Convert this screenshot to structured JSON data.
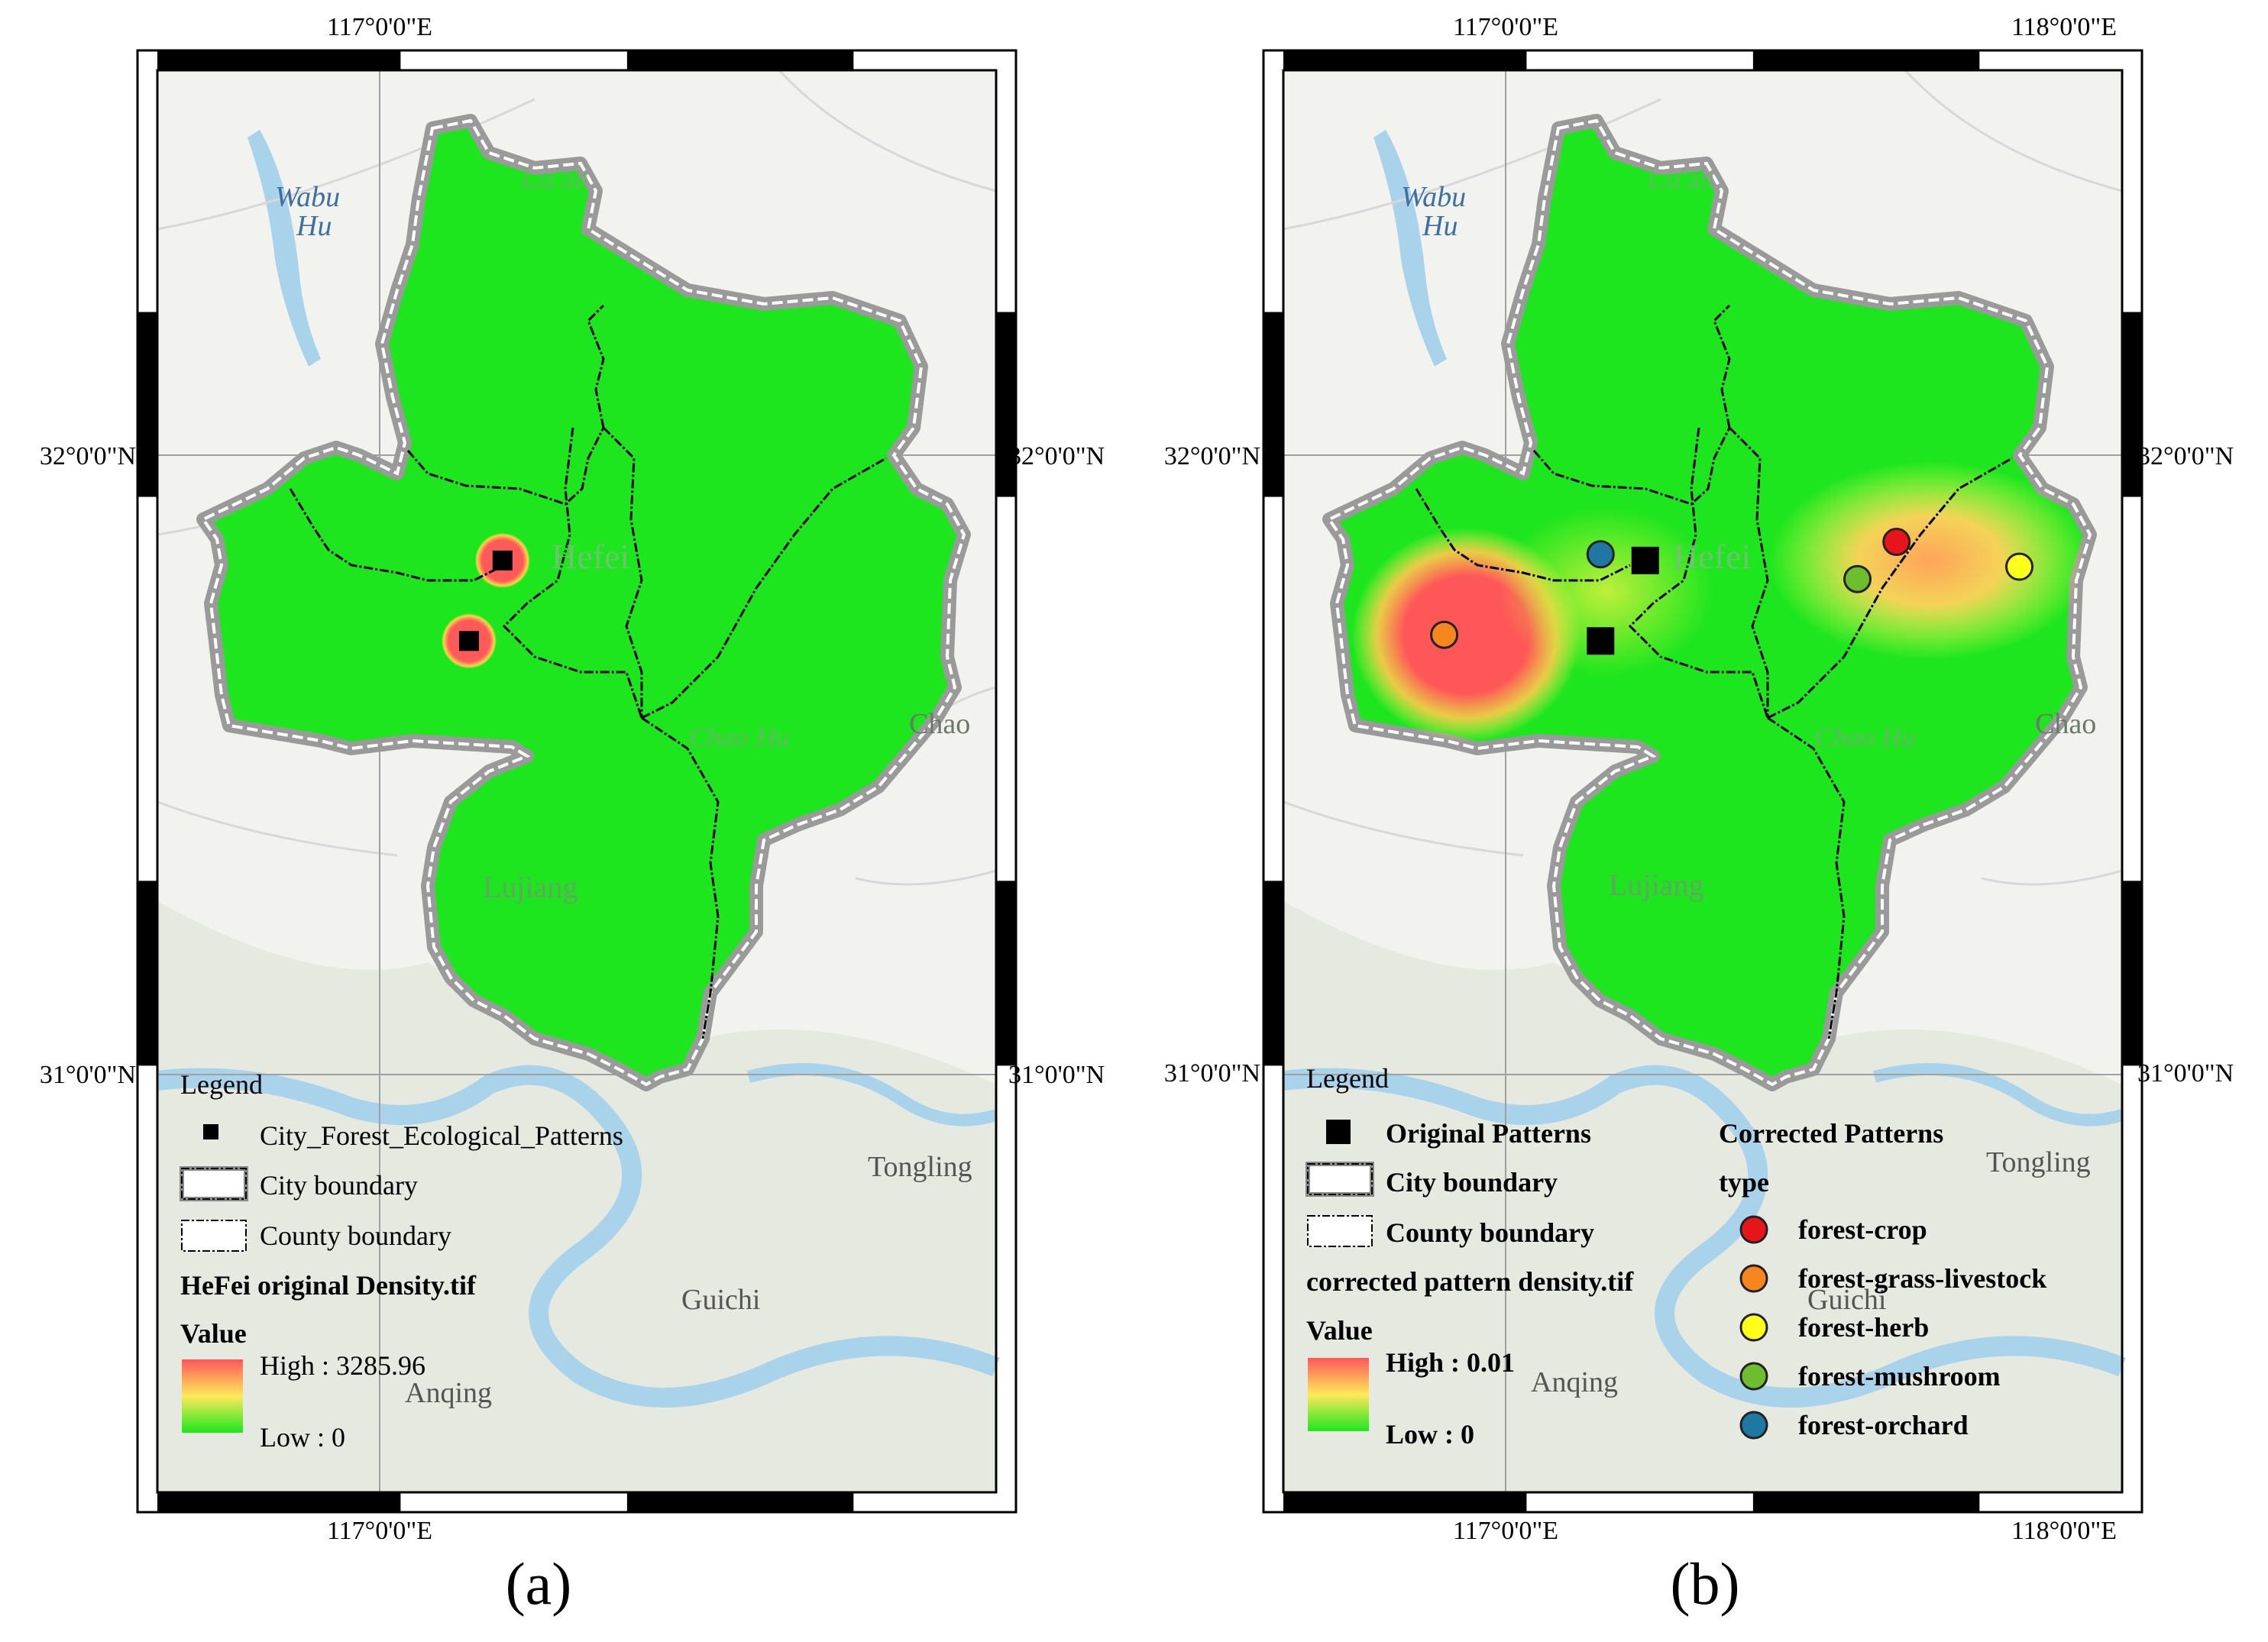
{
  "panels": [
    {
      "id": "a",
      "caption": "(a)",
      "top_lon_labels": [
        "117°0'0\"E"
      ],
      "bottom_lon_labels": [
        "117°0'0\"E"
      ],
      "left_lat_labels": [
        "32°0'0\"N",
        "31°0'0\"N"
      ],
      "right_lat_labels": [
        "32°0'0\"N",
        "31°0'0\"N"
      ],
      "basemap_labels": [
        "Wabu",
        "Hu",
        "Lu'an",
        "Hefei",
        "Chao Hu",
        "Chao",
        "Lujiang",
        "Tongling",
        "Guichi",
        "Anqing"
      ],
      "legend": {
        "title": "Legend",
        "point_label": "City_Forest_Ecological_Patterns",
        "city_boundary": "City boundary",
        "county_boundary": "County boundary",
        "raster_title": "HeFei original Density.tif",
        "value_title": "Value",
        "high": "High : 3285.96",
        "low": "Low : 0"
      },
      "points": [
        {
          "kind": "original",
          "lon": 117.22,
          "lat": 31.83
        },
        {
          "kind": "original",
          "lon": 117.16,
          "lat": 31.7
        }
      ],
      "hotspots": [
        {
          "lon": 117.22,
          "lat": 31.83,
          "intensity": 1.0
        },
        {
          "lon": 117.16,
          "lat": 31.7,
          "intensity": 1.0
        }
      ]
    },
    {
      "id": "b",
      "caption": "(b)",
      "top_lon_labels": [
        "117°0'0\"E",
        "118°0'0\"E"
      ],
      "bottom_lon_labels": [
        "117°0'0\"E",
        "118°0'0\"E"
      ],
      "left_lat_labels": [
        "32°0'0\"N",
        "31°0'0\"N"
      ],
      "right_lat_labels": [
        "32°0'0\"N",
        "31°0'0\"N"
      ],
      "basemap_labels": [
        "Wabu",
        "Hu",
        "Lu'an",
        "Hefei",
        "Chao Hu",
        "Chao",
        "Lujiang",
        "Tongling",
        "Guichi",
        "Anqing"
      ],
      "legend": {
        "title": "Legend",
        "point_label": "Original Patterns",
        "city_boundary": "City boundary",
        "county_boundary": "County boundary",
        "raster_title": "corrected pattern density.tif",
        "value_title": "Value",
        "high": "High : 0.01",
        "low": "Low : 0",
        "corrected_title": "Corrected Patterns",
        "type_title": "type",
        "types": [
          {
            "name": "forest-crop",
            "color": "#e8141c"
          },
          {
            "name": "forest-grass-livestock",
            "color": "#f7861f"
          },
          {
            "name": "forest-herb",
            "color": "#ffff1c"
          },
          {
            "name": "forest-mushroom",
            "color": "#6dbe2e"
          },
          {
            "name": "forest-orchard",
            "color": "#1f77a4"
          }
        ]
      },
      "original_points": [
        {
          "lon": 117.25,
          "lat": 31.83
        },
        {
          "lon": 117.17,
          "lat": 31.7
        }
      ],
      "corrected_points": [
        {
          "type": "forest-crop",
          "lon": 117.7,
          "lat": 31.86
        },
        {
          "type": "forest-grass-livestock",
          "lon": 116.89,
          "lat": 31.71
        },
        {
          "type": "forest-herb",
          "lon": 117.92,
          "lat": 31.82
        },
        {
          "type": "forest-mushroom",
          "lon": 117.63,
          "lat": 31.8
        },
        {
          "type": "forest-orchard",
          "lon": 117.17,
          "lat": 31.84
        }
      ],
      "hotspots": [
        {
          "lon": 116.93,
          "lat": 31.71,
          "intensity": 1.0
        },
        {
          "lon": 117.76,
          "lat": 31.83,
          "intensity": 0.7
        },
        {
          "lon": 117.18,
          "lat": 31.78,
          "intensity": 0.4
        }
      ]
    }
  ],
  "colors": {
    "fill_low": "#1ee61e",
    "fill_mid": "#ffe95a",
    "fill_high": "#ff5757",
    "boundary_halo": "#9a9a9a",
    "county_line": "#000000",
    "basemap_bg": "#f2f2ee",
    "water": "#a9d3ea"
  }
}
